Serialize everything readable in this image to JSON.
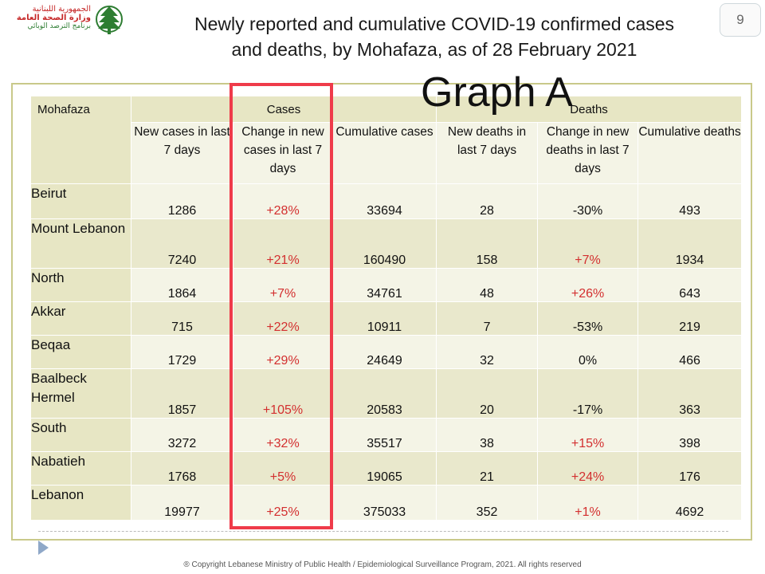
{
  "header": {
    "logo_ar": [
      "الجمهورية اللبنانية",
      "وزارة الصحة العامة",
      "برنامج الترصد الوبائي"
    ],
    "title_line1": "Newly reported and cumulative COVID-19 confirmed cases",
    "title_line2": "and deaths, by Mohafaza, as of 28 February 2021",
    "page_number": "9"
  },
  "annotation": {
    "label": "Graph A"
  },
  "table": {
    "group_headers": {
      "mohafaza": "Mohafaza",
      "cases": "Cases",
      "deaths": "Deaths"
    },
    "column_headers": [
      "New cases in last 7 days",
      "Change in new cases in last 7 days",
      "Cumulative cases",
      "New deaths in last 7 days",
      "Change in new deaths in last 7 days",
      "Cumulative deaths"
    ],
    "rows": [
      {
        "name": "Beirut",
        "values": [
          "1286",
          "+28%",
          "33694",
          "28",
          "-30%",
          "493"
        ]
      },
      {
        "name": "Mount Lebanon",
        "values": [
          "7240",
          "+21%",
          "160490",
          "158",
          "+7%",
          "1934"
        ]
      },
      {
        "name": "North",
        "values": [
          "1864",
          "+7%",
          "34761",
          "48",
          "+26%",
          "643"
        ]
      },
      {
        "name": "Akkar",
        "values": [
          "715",
          "+22%",
          "10911",
          "7",
          "-53%",
          "219"
        ]
      },
      {
        "name": "Beqaa",
        "values": [
          "1729",
          "+29%",
          "24649",
          "32",
          "0%",
          "466"
        ]
      },
      {
        "name": "Baalbeck Hermel",
        "values": [
          "1857",
          "+105%",
          "20583",
          "20",
          "-17%",
          "363"
        ]
      },
      {
        "name": "South",
        "values": [
          "3272",
          "+32%",
          "35517",
          "38",
          "+15%",
          "398"
        ]
      },
      {
        "name": "Nabatieh",
        "values": [
          "1768",
          "+5%",
          "19065",
          "21",
          "+24%",
          "176"
        ]
      },
      {
        "name": "Lebanon",
        "values": [
          "19977",
          "+25%",
          "375033",
          "352",
          "+1%",
          "4692"
        ]
      }
    ]
  },
  "footer": {
    "copyright": "® Copyright Lebanese Ministry of Public Health / Epidemiological Surveillance Program, 2021. All rights reserved"
  },
  "colors": {
    "header_fill": "#e7e6c4",
    "row_fill_light": "#f4f4e6",
    "row_fill_dark": "#e9e8cc",
    "frame_border": "#c9c98a",
    "highlight_box": "#ef3b4a",
    "positive_change": "#d32f2f"
  }
}
